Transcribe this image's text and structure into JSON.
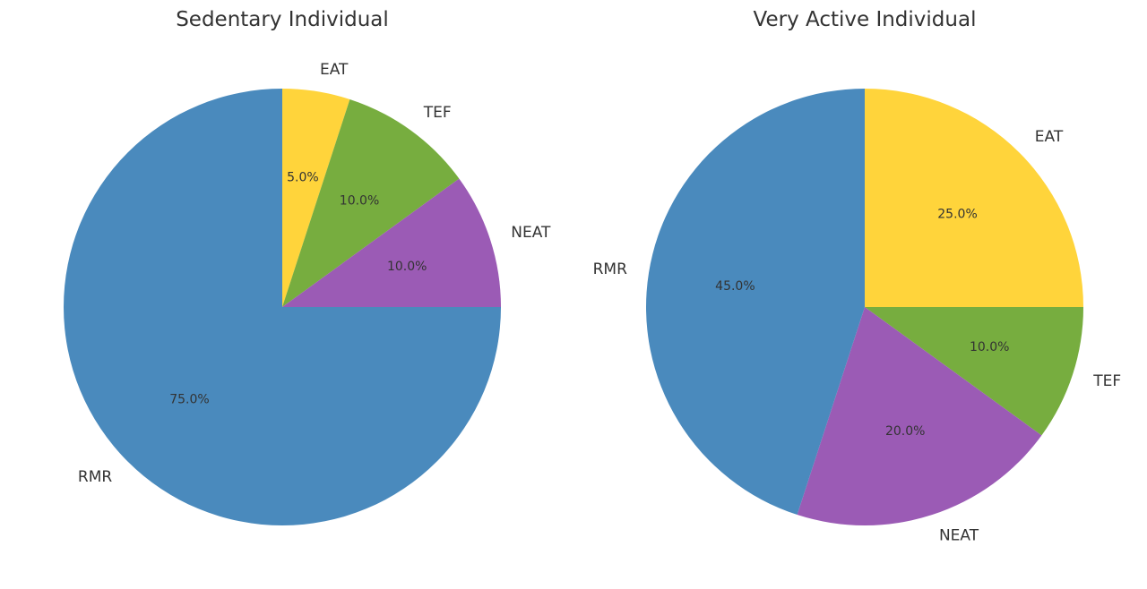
{
  "chart_data": [
    {
      "type": "pie",
      "title": "Sedentary Individual",
      "start_angle_deg": 90,
      "direction": "clockwise",
      "slices": [
        {
          "label": "EAT",
          "value": 5.0,
          "pct_label": "5.0%",
          "color": "#FFD43B"
        },
        {
          "label": "TEF",
          "value": 10.0,
          "pct_label": "10.0%",
          "color": "#77AD3F"
        },
        {
          "label": "NEAT",
          "value": 10.0,
          "pct_label": "10.0%",
          "color": "#9B5BB5"
        },
        {
          "label": "RMR",
          "value": 75.0,
          "pct_label": "75.0%",
          "color": "#4A8ABD"
        }
      ]
    },
    {
      "type": "pie",
      "title": "Very Active Individual",
      "start_angle_deg": 90,
      "direction": "clockwise",
      "slices": [
        {
          "label": "EAT",
          "value": 25.0,
          "pct_label": "25.0%",
          "color": "#FFD43B"
        },
        {
          "label": "TEF",
          "value": 10.0,
          "pct_label": "10.0%",
          "color": "#77AD3F"
        },
        {
          "label": "NEAT",
          "value": 20.0,
          "pct_label": "20.0%",
          "color": "#9B5BB5"
        },
        {
          "label": "RMR",
          "value": 45.0,
          "pct_label": "45.0%",
          "color": "#4A8ABD"
        }
      ]
    }
  ]
}
